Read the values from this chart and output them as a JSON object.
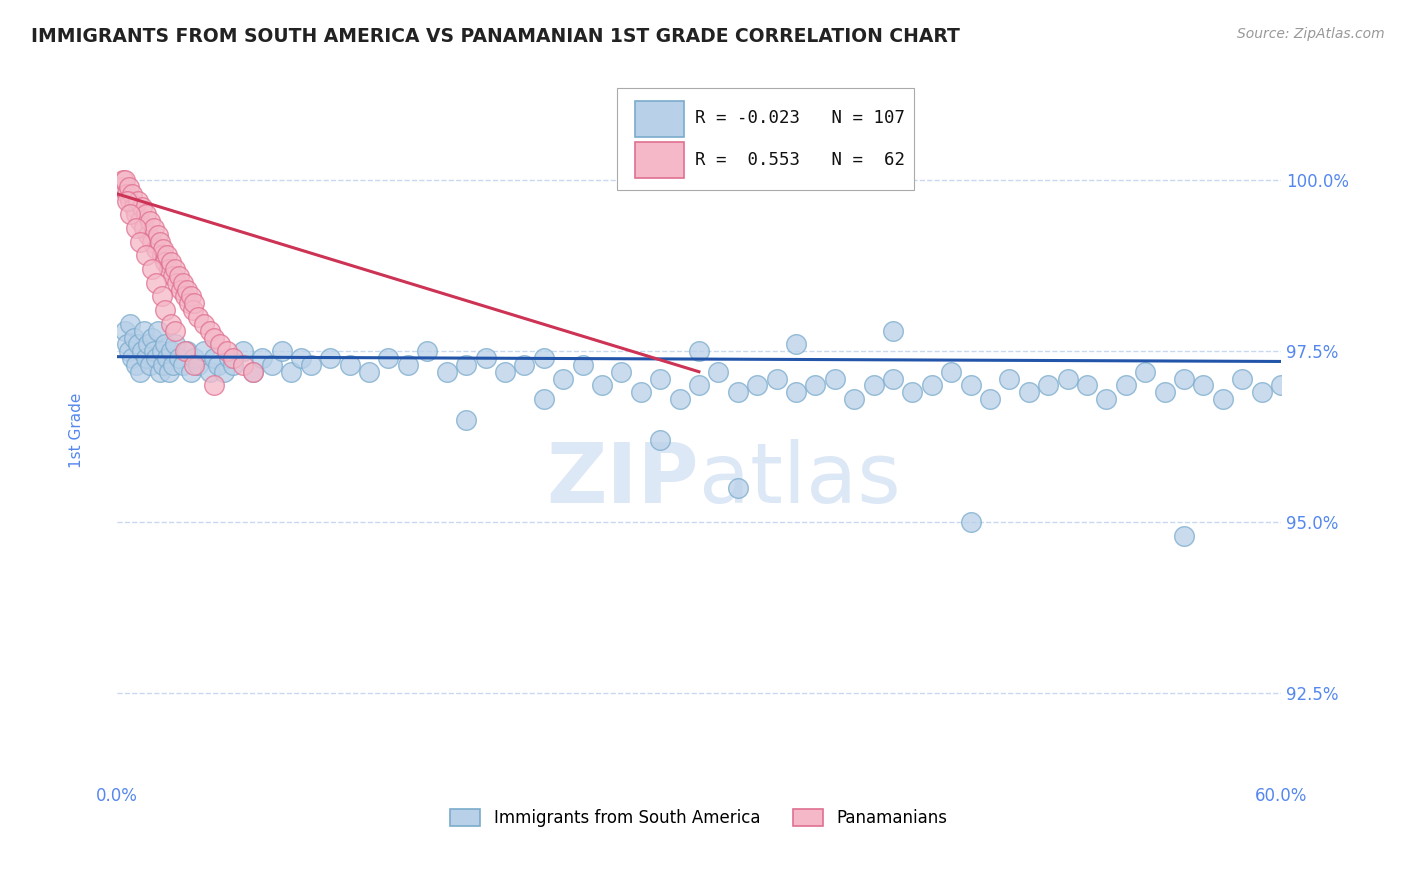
{
  "title": "IMMIGRANTS FROM SOUTH AMERICA VS PANAMANIAN 1ST GRADE CORRELATION CHART",
  "source_text": "Source: ZipAtlas.com",
  "ylabel": "1st Grade",
  "xlim": [
    0.0,
    60.0
  ],
  "ylim": [
    91.2,
    101.5
  ],
  "yticks": [
    92.5,
    95.0,
    97.5,
    100.0
  ],
  "ytick_labels": [
    "92.5%",
    "95.0%",
    "97.5%",
    "100.0%"
  ],
  "xticks": [
    0.0,
    10.0,
    20.0,
    30.0,
    40.0,
    50.0,
    60.0
  ],
  "xtick_labels": [
    "0.0%",
    "",
    "",
    "",
    "",
    "",
    "60.0%"
  ],
  "blue_R": -0.023,
  "blue_N": 107,
  "pink_R": 0.553,
  "pink_N": 62,
  "blue_color": "#b8d0e8",
  "blue_edge": "#7aabcc",
  "pink_color": "#f4b8c8",
  "pink_edge": "#e07090",
  "blue_line_color": "#2255aa",
  "pink_line_color": "#cc3355",
  "axis_color": "#5588ee",
  "grid_color": "#c8d8f0",
  "title_color": "#222222",
  "watermark_color": "#dce8f5",
  "blue_scatter_x": [
    0.4,
    0.5,
    0.6,
    0.7,
    0.8,
    0.9,
    1.0,
    1.1,
    1.2,
    1.3,
    1.4,
    1.5,
    1.6,
    1.7,
    1.8,
    1.9,
    2.0,
    2.1,
    2.2,
    2.3,
    2.4,
    2.5,
    2.6,
    2.7,
    2.8,
    2.9,
    3.0,
    3.2,
    3.4,
    3.6,
    3.8,
    4.0,
    4.2,
    4.5,
    4.8,
    5.0,
    5.2,
    5.5,
    5.8,
    6.0,
    6.5,
    7.0,
    7.5,
    8.0,
    8.5,
    9.0,
    9.5,
    10.0,
    11.0,
    12.0,
    13.0,
    14.0,
    15.0,
    16.0,
    17.0,
    18.0,
    19.0,
    20.0,
    21.0,
    22.0,
    23.0,
    24.0,
    25.0,
    26.0,
    27.0,
    28.0,
    29.0,
    30.0,
    31.0,
    32.0,
    33.0,
    34.0,
    35.0,
    36.0,
    37.0,
    38.0,
    39.0,
    40.0,
    41.0,
    42.0,
    43.0,
    44.0,
    45.0,
    46.0,
    47.0,
    48.0,
    49.0,
    50.0,
    51.0,
    52.0,
    53.0,
    54.0,
    55.0,
    56.0,
    57.0,
    58.0,
    59.0,
    60.0,
    44.0,
    55.0,
    28.0,
    32.0,
    18.0,
    22.0,
    30.0,
    35.0,
    40.0
  ],
  "blue_scatter_y": [
    97.8,
    97.6,
    97.5,
    97.9,
    97.4,
    97.7,
    97.3,
    97.6,
    97.2,
    97.5,
    97.8,
    97.4,
    97.6,
    97.3,
    97.7,
    97.5,
    97.4,
    97.8,
    97.2,
    97.5,
    97.3,
    97.6,
    97.4,
    97.2,
    97.5,
    97.3,
    97.6,
    97.4,
    97.3,
    97.5,
    97.2,
    97.4,
    97.3,
    97.5,
    97.2,
    97.4,
    97.3,
    97.2,
    97.4,
    97.3,
    97.5,
    97.2,
    97.4,
    97.3,
    97.5,
    97.2,
    97.4,
    97.3,
    97.4,
    97.3,
    97.2,
    97.4,
    97.3,
    97.5,
    97.2,
    97.3,
    97.4,
    97.2,
    97.3,
    97.4,
    97.1,
    97.3,
    97.0,
    97.2,
    96.9,
    97.1,
    96.8,
    97.0,
    97.2,
    96.9,
    97.0,
    97.1,
    96.9,
    97.0,
    97.1,
    96.8,
    97.0,
    97.1,
    96.9,
    97.0,
    97.2,
    97.0,
    96.8,
    97.1,
    96.9,
    97.0,
    97.1,
    97.0,
    96.8,
    97.0,
    97.2,
    96.9,
    97.1,
    97.0,
    96.8,
    97.1,
    96.9,
    97.0,
    95.0,
    94.8,
    96.2,
    95.5,
    96.5,
    96.8,
    97.5,
    97.6,
    97.8
  ],
  "pink_scatter_x": [
    0.2,
    0.3,
    0.4,
    0.5,
    0.6,
    0.7,
    0.8,
    0.9,
    1.0,
    1.1,
    1.2,
    1.3,
    1.4,
    1.5,
    1.6,
    1.7,
    1.8,
    1.9,
    2.0,
    2.1,
    2.2,
    2.3,
    2.4,
    2.5,
    2.6,
    2.7,
    2.8,
    2.9,
    3.0,
    3.1,
    3.2,
    3.3,
    3.4,
    3.5,
    3.6,
    3.7,
    3.8,
    3.9,
    4.0,
    4.2,
    4.5,
    4.8,
    5.0,
    5.3,
    5.7,
    6.0,
    6.5,
    7.0,
    0.5,
    0.7,
    1.0,
    1.2,
    1.5,
    1.8,
    2.0,
    2.3,
    2.5,
    2.8,
    3.0,
    3.5,
    4.0,
    5.0
  ],
  "pink_scatter_y": [
    99.9,
    100.0,
    100.0,
    99.8,
    99.9,
    99.7,
    99.8,
    99.6,
    99.5,
    99.7,
    99.4,
    99.6,
    99.3,
    99.5,
    99.2,
    99.4,
    99.1,
    99.3,
    99.0,
    99.2,
    99.1,
    98.9,
    99.0,
    98.8,
    98.9,
    98.7,
    98.8,
    98.6,
    98.7,
    98.5,
    98.6,
    98.4,
    98.5,
    98.3,
    98.4,
    98.2,
    98.3,
    98.1,
    98.2,
    98.0,
    97.9,
    97.8,
    97.7,
    97.6,
    97.5,
    97.4,
    97.3,
    97.2,
    99.7,
    99.5,
    99.3,
    99.1,
    98.9,
    98.7,
    98.5,
    98.3,
    98.1,
    97.9,
    97.8,
    97.5,
    97.3,
    97.0
  ],
  "blue_trend_x": [
    0.0,
    60.0
  ],
  "blue_trend_y": [
    97.42,
    97.35
  ],
  "pink_trend_x": [
    0.0,
    30.0
  ],
  "pink_trend_y": [
    99.8,
    97.2
  ]
}
